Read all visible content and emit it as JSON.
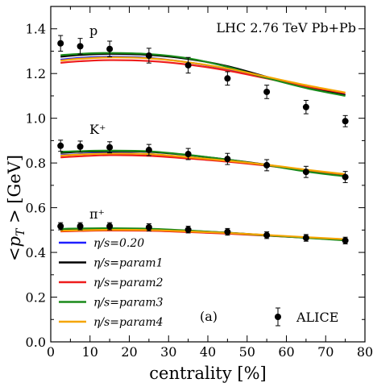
{
  "chart_data": {
    "type": "line",
    "xlabel": "centrality [%]",
    "ylabel": "<p_T> [GeV]",
    "xlim": [
      0,
      80
    ],
    "ylim": [
      0.0,
      1.5
    ],
    "xticks": [
      "0",
      "10",
      "20",
      "30",
      "40",
      "50",
      "60",
      "70",
      "80"
    ],
    "yticks": [
      "0.0",
      "0.2",
      "0.4",
      "0.6",
      "0.8",
      "1.0",
      "1.2",
      "1.4"
    ],
    "grid": false,
    "legend_position": "bottom-left",
    "annotations": {
      "system": "LHC 2.76 TeV Pb+Pb",
      "panel": "(a)",
      "particles": [
        {
          "label": "p",
          "x": 16,
          "y": 1.4
        },
        {
          "label": "K⁺",
          "x": 16,
          "y": 0.96
        },
        {
          "label": "π⁺",
          "x": 16,
          "y": 0.58
        }
      ]
    },
    "x": [
      2.5,
      7.5,
      15,
      25,
      35,
      45,
      55,
      65,
      75
    ],
    "series": [
      {
        "name": "η/s=0.20",
        "color": "#1f1fff",
        "particles": {
          "p": [
            1.262,
            1.27,
            1.275,
            1.27,
            1.25,
            1.22,
            1.18,
            1.14,
            1.105
          ],
          "K": [
            0.835,
            0.84,
            0.845,
            0.84,
            0.825,
            0.81,
            0.79,
            0.765,
            0.745
          ],
          "pi": [
            0.498,
            0.5,
            0.502,
            0.5,
            0.494,
            0.486,
            0.476,
            0.466,
            0.456
          ]
        }
      },
      {
        "name": "η/s=param1",
        "color": "#000000",
        "particles": {
          "p": [
            1.275,
            1.283,
            1.288,
            1.283,
            1.265,
            1.233,
            1.185,
            1.14,
            1.103
          ],
          "K": [
            0.845,
            0.85,
            0.852,
            0.85,
            0.835,
            0.815,
            0.792,
            0.765,
            0.743
          ],
          "pi": [
            0.503,
            0.505,
            0.506,
            0.504,
            0.497,
            0.488,
            0.477,
            0.466,
            0.455
          ]
        }
      },
      {
        "name": "η/s=param2",
        "color": "#ee1c1c",
        "particles": {
          "p": [
            1.248,
            1.255,
            1.26,
            1.256,
            1.24,
            1.213,
            1.178,
            1.143,
            1.112
          ],
          "K": [
            0.825,
            0.83,
            0.835,
            0.832,
            0.82,
            0.806,
            0.788,
            0.767,
            0.748
          ],
          "pi": [
            0.494,
            0.496,
            0.498,
            0.497,
            0.491,
            0.484,
            0.475,
            0.466,
            0.458
          ]
        }
      },
      {
        "name": "η/s=param3",
        "color": "#1a8a1a",
        "particles": {
          "p": [
            1.282,
            1.288,
            1.292,
            1.287,
            1.268,
            1.23,
            1.18,
            1.135,
            1.1
          ],
          "K": [
            0.85,
            0.853,
            0.855,
            0.852,
            0.836,
            0.815,
            0.79,
            0.762,
            0.74
          ],
          "pi": [
            0.505,
            0.507,
            0.508,
            0.506,
            0.498,
            0.488,
            0.476,
            0.465,
            0.454
          ]
        }
      },
      {
        "name": "η/s=param4",
        "color": "#f5a500",
        "particles": {
          "p": [
            1.258,
            1.266,
            1.272,
            1.268,
            1.25,
            1.222,
            1.185,
            1.148,
            1.115
          ],
          "K": [
            0.833,
            0.838,
            0.842,
            0.84,
            0.826,
            0.81,
            0.792,
            0.77,
            0.75
          ],
          "pi": [
            0.497,
            0.499,
            0.501,
            0.5,
            0.494,
            0.487,
            0.478,
            0.468,
            0.459
          ]
        }
      }
    ],
    "data": {
      "name": "ALICE",
      "points": {
        "p": {
          "x": [
            2.5,
            7.5,
            15,
            25,
            35,
            45,
            55,
            65,
            75
          ],
          "y": [
            1.335,
            1.322,
            1.31,
            1.28,
            1.237,
            1.178,
            1.118,
            1.05,
            0.987
          ],
          "err": [
            0.035,
            0.035,
            0.035,
            0.033,
            0.035,
            0.03,
            0.03,
            0.03,
            0.025
          ]
        },
        "K": {
          "x": [
            2.5,
            7.5,
            15,
            25,
            35,
            45,
            55,
            65,
            75
          ],
          "y": [
            0.877,
            0.873,
            0.87,
            0.858,
            0.84,
            0.818,
            0.79,
            0.76,
            0.737
          ],
          "err": [
            0.025,
            0.025,
            0.025,
            0.025,
            0.025,
            0.025,
            0.025,
            0.025,
            0.025
          ]
        },
        "pi": {
          "x": [
            2.5,
            7.5,
            15,
            25,
            35,
            45,
            55,
            65,
            75
          ],
          "y": [
            0.517,
            0.517,
            0.517,
            0.512,
            0.502,
            0.492,
            0.477,
            0.465,
            0.453
          ],
          "err": [
            0.016,
            0.016,
            0.016,
            0.016,
            0.015,
            0.015,
            0.015,
            0.015,
            0.015
          ]
        }
      }
    }
  }
}
